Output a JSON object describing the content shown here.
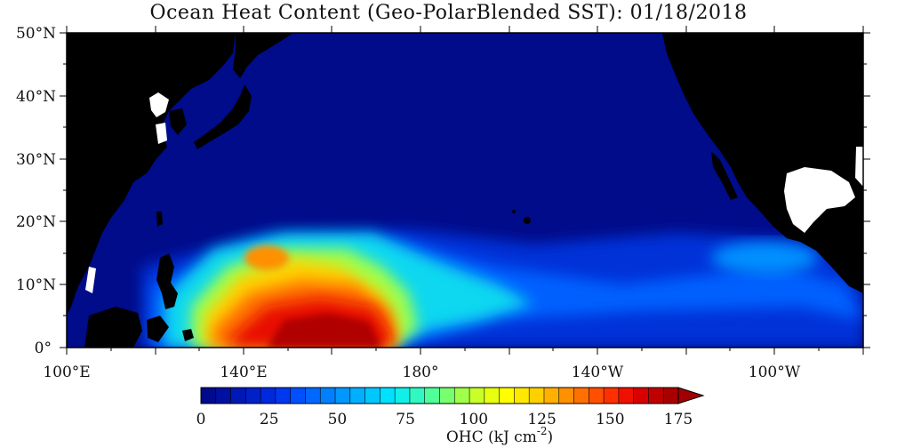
{
  "title": "Ocean Heat Content (Geo-PolarBlended SST): 01/18/2018",
  "lat_labels": [
    "50°N",
    "40°N",
    "30°N",
    "20°N",
    "10°N",
    "0°"
  ],
  "lon_labels": [
    "100°E",
    "140°E",
    "180°",
    "140°W",
    "100°W"
  ],
  "colorbar": {
    "tick_labels": [
      "0",
      "25",
      "50",
      "75",
      "100",
      "125",
      "150",
      "175"
    ],
    "title": "OHC (kJ cm",
    "title_sup": "-2",
    "title_end": ")",
    "colors": [
      "#000a8c",
      "#0010a0",
      "#0018b4",
      "#0020c8",
      "#0028dc",
      "#0038f0",
      "#0050ff",
      "#0068ff",
      "#0080ff",
      "#0098ff",
      "#00b0ff",
      "#00c8ff",
      "#00e0ff",
      "#10f0e8",
      "#30f8c0",
      "#50ff98",
      "#78ff70",
      "#a0ff48",
      "#c8ff28",
      "#e8ff10",
      "#ffff00",
      "#ffe800",
      "#ffd000",
      "#ffb000",
      "#ff9000",
      "#ff7000",
      "#ff5000",
      "#ff3000",
      "#f01000",
      "#d80000",
      "#c00000",
      "#a80000"
    ]
  }
}
